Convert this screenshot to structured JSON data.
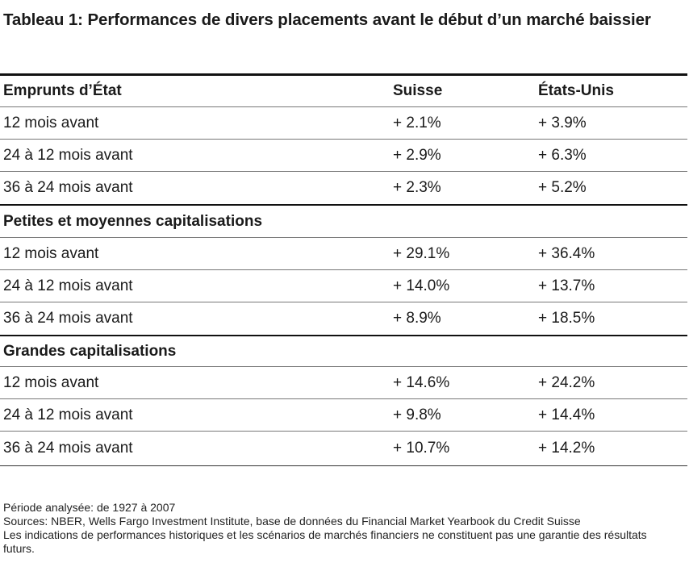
{
  "title": "Tableau 1: Performances de divers placements avant le début d’un marché baissier",
  "columns": {
    "suisse": "Suisse",
    "usa": "États-Unis"
  },
  "sections": [
    {
      "name": "Emprunts d’État",
      "rows": [
        {
          "label": "12 mois avant",
          "suisse": "+ 2.1%",
          "usa": "+ 3.9%"
        },
        {
          "label": "24 à 12 mois avant",
          "suisse": "+ 2.9%",
          "usa": "+ 6.3%"
        },
        {
          "label": "36 à 24 mois avant",
          "suisse": "+ 2.3%",
          "usa": "+ 5.2%"
        }
      ]
    },
    {
      "name": "Petites et moyennes capitalisations",
      "rows": [
        {
          "label": "12 mois avant",
          "suisse": "+ 29.1%",
          "usa": "+ 36.4%"
        },
        {
          "label": "24 à 12 mois avant",
          "suisse": "+ 14.0%",
          "usa": "+ 13.7%"
        },
        {
          "label": "36 à 24 mois avant",
          "suisse": "+ 8.9%",
          "usa": "+ 18.5%"
        }
      ]
    },
    {
      "name": "Grandes capitalisations",
      "rows": [
        {
          "label": "12 mois avant",
          "suisse": "+ 14.6%",
          "usa": "+ 24.2%"
        },
        {
          "label": "24 à 12 mois avant",
          "suisse": "+ 9.8%",
          "usa": "+ 14.4%"
        },
        {
          "label": "36 à 24 mois avant",
          "suisse": "+ 10.7%",
          "usa": "+ 14.2%"
        }
      ]
    }
  ],
  "notes": {
    "period": "Période analysée: de 1927 à 2007",
    "sources": "Sources: NBER, Wells Fargo Investment Institute, base de données du Financial Market Yearbook du Credit Suisse",
    "disclaimer": "Les indications de performances historiques et les scénarios de marchés financiers ne constituent pas une garantie des résultats futurs."
  }
}
